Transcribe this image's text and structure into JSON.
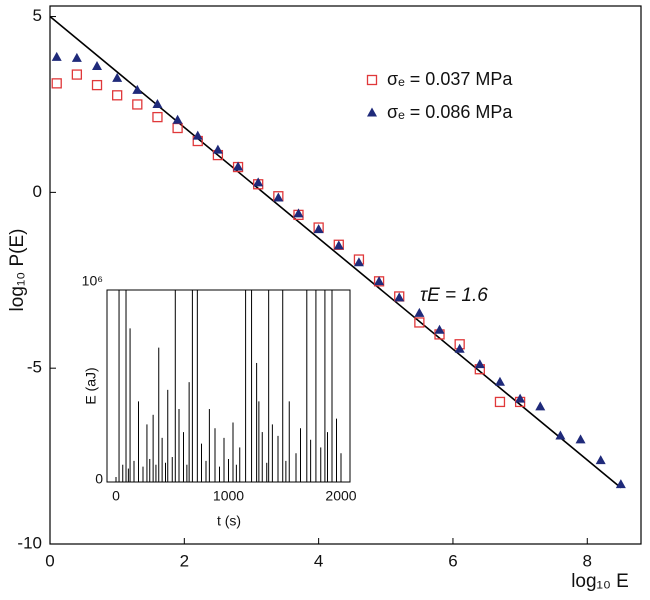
{
  "chart_data": [
    {
      "type": "scatter",
      "xlabel": "log₁₀ E",
      "ylabel": "log₁₀ P(E)",
      "xlim": [
        0,
        8.8
      ],
      "ylim": [
        -10,
        5.3
      ],
      "xticks": [
        0,
        2,
        4,
        6,
        8
      ],
      "yticks": [
        -10,
        -5,
        0,
        5
      ],
      "legend": "upper right",
      "annotation": "τE = 1.6",
      "series": [
        {
          "name": "σₑ = 0.037 MPa",
          "color": "#e0383a",
          "marker": "square",
          "x": [
            0.1,
            0.4,
            0.7,
            1.0,
            1.3,
            1.6,
            1.9,
            2.2,
            2.5,
            2.8,
            3.1,
            3.4,
            3.7,
            4.0,
            4.3,
            4.6,
            4.9,
            5.2,
            5.5,
            5.8,
            6.1,
            6.4,
            6.7,
            7.0
          ],
          "values": [
            3.1,
            3.35,
            3.05,
            2.76,
            2.5,
            2.14,
            1.83,
            1.46,
            1.06,
            0.72,
            0.23,
            -0.11,
            -0.64,
            -1.0,
            -1.49,
            -1.91,
            -2.53,
            -2.96,
            -3.7,
            -4.04,
            -4.32,
            -5.03,
            -5.96,
            -5.96
          ]
        },
        {
          "name": "σₑ = 0.086 MPa",
          "color": "#1f2a7a",
          "marker": "triangle",
          "x": [
            0.1,
            0.4,
            0.7,
            1.0,
            1.3,
            1.6,
            1.9,
            2.2,
            2.5,
            2.8,
            3.1,
            3.4,
            3.7,
            4.0,
            4.3,
            4.6,
            4.9,
            5.2,
            5.5,
            5.8,
            6.1,
            6.4,
            6.7,
            7.0,
            7.3,
            7.6,
            7.9,
            8.2,
            8.5
          ],
          "values": [
            3.84,
            3.81,
            3.58,
            3.24,
            2.9,
            2.5,
            2.05,
            1.6,
            1.2,
            0.72,
            0.27,
            -0.16,
            -0.61,
            -1.06,
            -1.52,
            -2.0,
            -2.54,
            -3.0,
            -3.44,
            -3.92,
            -4.46,
            -4.9,
            -5.4,
            -5.88,
            -6.1,
            -6.93,
            -7.04,
            -7.63,
            -8.31
          ]
        }
      ],
      "fit": {
        "color": "#000000",
        "x": [
          0,
          8.5
        ],
        "values": [
          5,
          -8.4
        ]
      }
    },
    {
      "type": "stem",
      "xlabel": "t (s)",
      "ylabel": "E (aJ)",
      "xlim": [
        -80,
        2080
      ],
      "ylim": [
        0,
        1000000
      ],
      "xticks": [
        0,
        1000,
        2000
      ],
      "yticks": [
        0,
        {
          "value": 1000000,
          "label": "10⁶"
        }
      ],
      "color": "#000000",
      "x": [
        27,
        60,
        89,
        110,
        125,
        160,
        200,
        240,
        275,
        300,
        330,
        355,
        380,
        410,
        440,
        460,
        500,
        527,
        560,
        600,
        630,
        650,
        679,
        723,
        760,
        800,
        830,
        880,
        920,
        960,
        1000,
        1040,
        1070,
        1100,
        1152,
        1205,
        1250,
        1270,
        1300,
        1340,
        1357,
        1390,
        1440,
        1482,
        1510,
        1540,
        1600,
        1640,
        1696,
        1730,
        1777,
        1820,
        1857,
        1880,
        1920,
        1960,
        2000
      ],
      "values": [
        2000000,
        90000,
        2000000,
        70000,
        800000,
        110000,
        420000,
        80000,
        300000,
        120000,
        350000,
        90000,
        700000,
        230000,
        100000,
        480000,
        130000,
        2000000,
        380000,
        260000,
        90000,
        520000,
        2000000,
        2000000,
        200000,
        110000,
        380000,
        280000,
        80000,
        230000,
        120000,
        310000,
        90000,
        180000,
        2000000,
        2000000,
        620000,
        420000,
        260000,
        100000,
        2000000,
        300000,
        240000,
        2000000,
        110000,
        420000,
        150000,
        280000,
        2000000,
        220000,
        2000000,
        180000,
        2000000,
        260000,
        2000000,
        330000,
        150000
      ]
    }
  ]
}
